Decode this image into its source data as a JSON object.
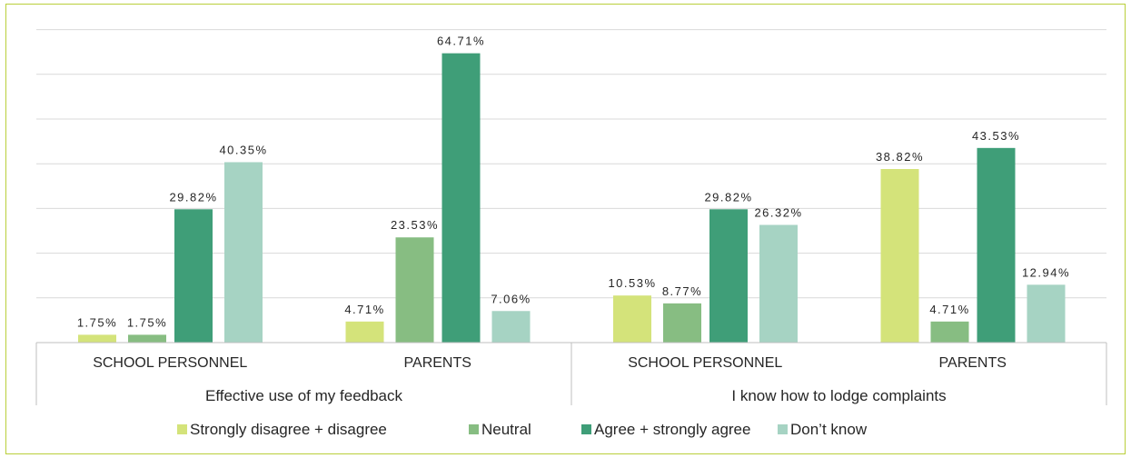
{
  "chart_data": {
    "type": "bar",
    "groups": [
      {
        "label": "Effective use of my feedback",
        "categories": [
          "SCHOOL PERSONNEL",
          "PARENTS"
        ]
      },
      {
        "label": "I know how to lodge complaints",
        "categories": [
          "SCHOOL PERSONNEL",
          "PARENTS"
        ]
      }
    ],
    "categories": [
      "SCHOOL PERSONNEL",
      "PARENTS",
      "SCHOOL PERSONNEL",
      "PARENTS"
    ],
    "series": [
      {
        "name": "Strongly disagree + disagree",
        "color": "#d4e37a",
        "values": [
          1.75,
          4.71,
          10.53,
          38.82
        ],
        "labels": [
          "1.75%",
          "4.71%",
          "10.53%",
          "38.82%"
        ]
      },
      {
        "name": "Neutral",
        "color": "#87bd82",
        "values": [
          1.75,
          23.53,
          8.77,
          4.71
        ],
        "labels": [
          "1.75%",
          "23.53%",
          "8.77%",
          "4.71%"
        ]
      },
      {
        "name": "Agree + strongly agree",
        "color": "#3f9e78",
        "values": [
          29.82,
          64.71,
          29.82,
          43.53
        ],
        "labels": [
          "29.82%",
          "64.71%",
          "29.82%",
          "43.53%"
        ]
      },
      {
        "name": "Don’t know",
        "color": "#a6d3c3",
        "values": [
          40.35,
          7.06,
          26.32,
          12.94
        ],
        "labels": [
          "40.35%",
          "7.06%",
          "26.32%",
          "12.94%"
        ]
      }
    ],
    "ylim": [
      0,
      70
    ],
    "grid": true,
    "legend": "bottom"
  }
}
